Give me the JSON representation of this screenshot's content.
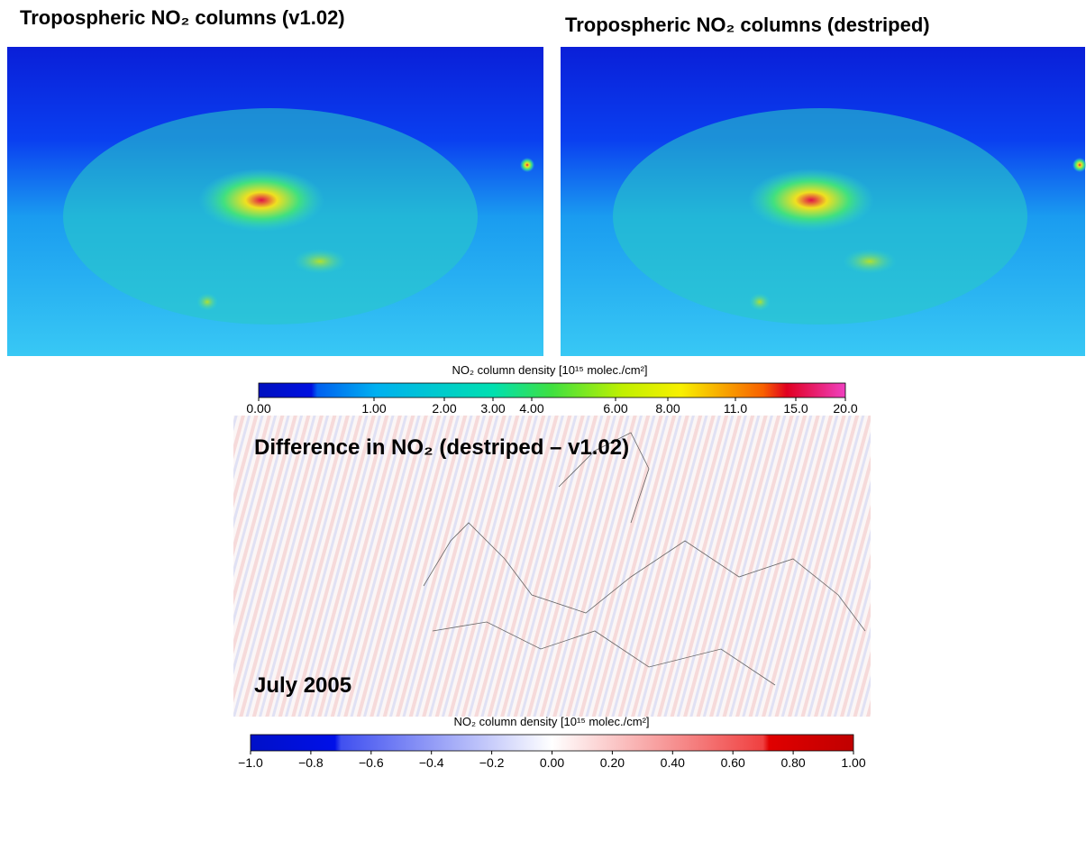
{
  "panels": [
    {
      "title": "Tropospheric NO₂ columns (v1.02)"
    },
    {
      "title": "Tropospheric NO₂ columns (destriped)"
    },
    {
      "title": "Difference in NO₂ (destriped – v1.02)",
      "annotation": "July 2005"
    }
  ],
  "colorbars": [
    {
      "label": "NO₂ column density [10¹⁵ molec./cm²]",
      "ticks": [
        {
          "value": 0,
          "label": "0.00"
        },
        {
          "value": 1,
          "label": "1.00"
        },
        {
          "value": 2,
          "label": "2.00"
        },
        {
          "value": 3,
          "label": "3.00"
        },
        {
          "value": 4,
          "label": "4.00"
        },
        {
          "value": 6,
          "label": "6.00"
        },
        {
          "value": 8,
          "label": "8.00"
        },
        {
          "value": 11,
          "label": "11.0"
        },
        {
          "value": 15,
          "label": "15.0"
        },
        {
          "value": 20,
          "label": "20.0"
        }
      ]
    },
    {
      "label": "NO₂ column density [10¹⁵ molec./cm²]",
      "range": [
        -1,
        1
      ],
      "ticks": [
        {
          "value": -1,
          "label": "−1.0"
        },
        {
          "value": -0.8,
          "label": "−0.8"
        },
        {
          "value": -0.6,
          "label": "−0.6"
        },
        {
          "value": -0.4,
          "label": "−0.4"
        },
        {
          "value": -0.2,
          "label": "−0.2"
        },
        {
          "value": 0,
          "label": "0.00"
        },
        {
          "value": 0.2,
          "label": "0.20"
        },
        {
          "value": 0.4,
          "label": "0.40"
        },
        {
          "value": 0.6,
          "label": "0.60"
        },
        {
          "value": 0.8,
          "label": "0.80"
        },
        {
          "value": 1,
          "label": "1.00"
        }
      ]
    }
  ]
}
